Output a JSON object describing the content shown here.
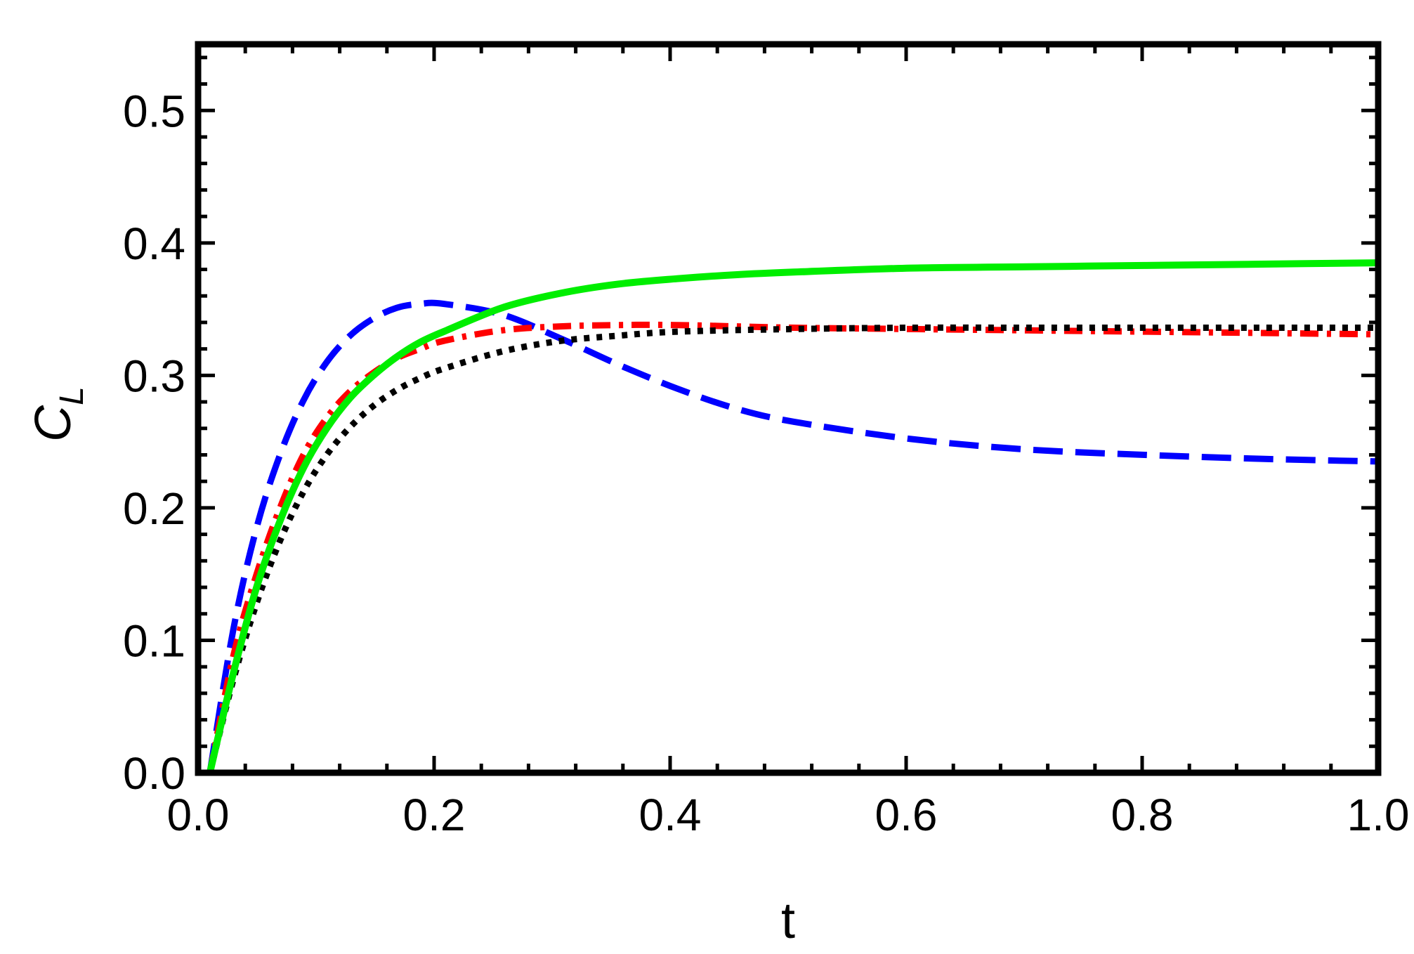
{
  "chart_data": {
    "type": "line",
    "title": "",
    "xlabel": "t",
    "ylabel_main": "C",
    "ylabel_sub": "L",
    "xlim": [
      0.0,
      1.0
    ],
    "ylim": [
      0.0,
      0.55
    ],
    "x_ticks": [
      0.0,
      0.2,
      0.4,
      0.6,
      0.8,
      1.0
    ],
    "x_tick_labels": [
      "0.0",
      "0.2",
      "0.4",
      "0.6",
      "0.8",
      "1.0"
    ],
    "y_ticks": [
      0.0,
      0.1,
      0.2,
      0.3,
      0.4,
      0.5
    ],
    "y_tick_labels": [
      "0.0",
      "0.1",
      "0.2",
      "0.3",
      "0.4",
      "0.5"
    ],
    "grid": false,
    "legend": "none",
    "series": [
      {
        "color": "#0000ff",
        "style": "dashed",
        "x": [
          0.0,
          0.02,
          0.04,
          0.06,
          0.08,
          0.1,
          0.12,
          0.14,
          0.16,
          0.18,
          0.2,
          0.25,
          0.3,
          0.35,
          0.4,
          0.45,
          0.5,
          0.6,
          0.7,
          0.8,
          0.9,
          1.0
        ],
        "y": [
          0.0,
          0.108,
          0.185,
          0.24,
          0.281,
          0.31,
          0.33,
          0.343,
          0.351,
          0.354,
          0.354,
          0.346,
          0.328,
          0.308,
          0.29,
          0.275,
          0.265,
          0.252,
          0.244,
          0.24,
          0.237,
          0.235
        ]
      },
      {
        "color": "#ff0000",
        "style": "dash-dot",
        "x": [
          0.0,
          0.02,
          0.04,
          0.06,
          0.08,
          0.1,
          0.12,
          0.14,
          0.16,
          0.18,
          0.2,
          0.25,
          0.3,
          0.35,
          0.4,
          0.5,
          0.6,
          0.7,
          0.8,
          0.9,
          1.0
        ],
        "y": [
          0.0,
          0.088,
          0.15,
          0.2,
          0.24,
          0.268,
          0.288,
          0.302,
          0.313,
          0.32,
          0.326,
          0.334,
          0.337,
          0.338,
          0.338,
          0.336,
          0.335,
          0.334,
          0.333,
          0.332,
          0.331
        ]
      },
      {
        "color": "#000000",
        "style": "dotted",
        "x": [
          0.0,
          0.02,
          0.04,
          0.06,
          0.08,
          0.1,
          0.12,
          0.14,
          0.16,
          0.18,
          0.2,
          0.25,
          0.3,
          0.35,
          0.4,
          0.5,
          0.6,
          0.7,
          0.8,
          0.9,
          1.0
        ],
        "y": [
          0.0,
          0.07,
          0.128,
          0.175,
          0.212,
          0.24,
          0.261,
          0.277,
          0.289,
          0.298,
          0.305,
          0.318,
          0.326,
          0.33,
          0.333,
          0.335,
          0.336,
          0.336,
          0.336,
          0.336,
          0.336
        ]
      },
      {
        "color": "#00ee00",
        "style": "solid",
        "x": [
          0.0,
          0.02,
          0.04,
          0.06,
          0.08,
          0.1,
          0.12,
          0.14,
          0.16,
          0.18,
          0.2,
          0.25,
          0.3,
          0.35,
          0.4,
          0.45,
          0.5,
          0.6,
          0.7,
          0.8,
          0.9,
          1.0
        ],
        "y": [
          0.0,
          0.075,
          0.14,
          0.19,
          0.23,
          0.26,
          0.283,
          0.3,
          0.314,
          0.325,
          0.333,
          0.351,
          0.362,
          0.369,
          0.373,
          0.376,
          0.378,
          0.381,
          0.382,
          0.383,
          0.384,
          0.385
        ]
      }
    ]
  }
}
